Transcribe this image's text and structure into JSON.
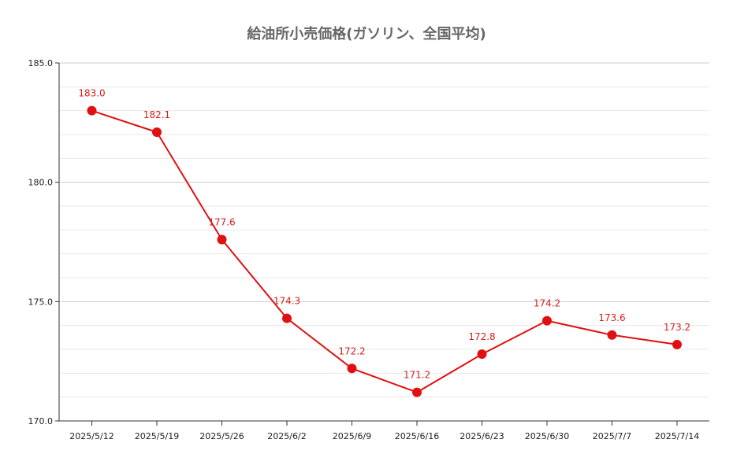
{
  "chart_data": {
    "type": "line",
    "title": "給油所小売価格(ガソリン、全国平均)",
    "xlabel": "",
    "ylabel": "",
    "categories": [
      "2025/5/12",
      "2025/5/19",
      "2025/5/26",
      "2025/6/2",
      "2025/6/9",
      "2025/6/16",
      "2025/6/23",
      "2025/6/30",
      "2025/7/7",
      "2025/7/14"
    ],
    "series": [
      {
        "values": [
          183.0,
          182.1,
          177.6,
          174.3,
          172.2,
          171.2,
          172.8,
          174.2,
          173.6,
          173.2
        ],
        "color": "#e01010"
      }
    ],
    "data_labels": [
      "183.0",
      "182.1",
      "177.6",
      "174.3",
      "172.2",
      "171.2",
      "172.8",
      "174.2",
      "173.6",
      "173.2"
    ],
    "ylim": [
      170,
      185
    ],
    "yticks": [
      "170.0",
      "175.0",
      "180.0",
      "185.0"
    ],
    "grid": true,
    "legend": "none",
    "colors": {
      "line": "#e01010",
      "label": "#d62020",
      "grid_major": "#cccccc",
      "grid_minor": "#e8e8e8"
    }
  }
}
